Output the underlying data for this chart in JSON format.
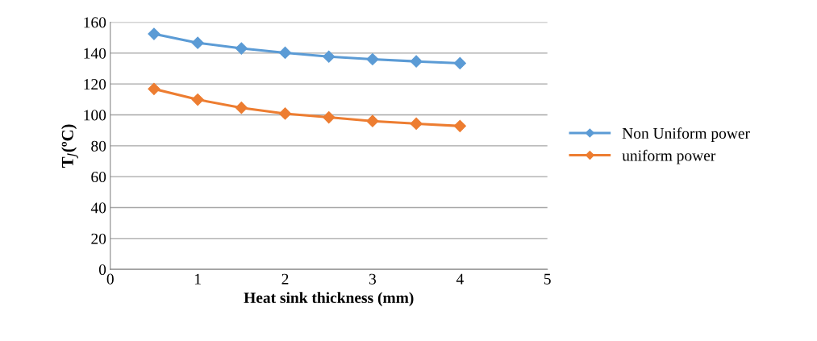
{
  "chart_data": {
    "type": "line",
    "xlabel": "Heat sink thickness (mm)",
    "ylabel": "T$_{J}$(ºC)",
    "x": [
      0.5,
      1,
      1.5,
      2,
      2.5,
      3,
      3.5,
      4
    ],
    "series": [
      {
        "name": "Non Uniform power",
        "color": "#5b9bd5",
        "values": [
          152.4,
          146.6,
          143,
          140.2,
          137.7,
          136,
          134.6,
          133.4
        ]
      },
      {
        "name": "uniform power",
        "color": "#ed7d31",
        "values": [
          116.8,
          109.9,
          104.6,
          100.8,
          98.4,
          96,
          94.3,
          92.8
        ]
      }
    ],
    "xlim": [
      0,
      5
    ],
    "xticks": [
      0,
      1,
      2,
      3,
      4,
      5
    ],
    "ylim": [
      0,
      160
    ],
    "yticks": [
      0,
      20,
      40,
      60,
      80,
      100,
      120,
      140,
      160
    ],
    "grid": "y",
    "legend": "right",
    "marker": "diamond",
    "line_style": "solid"
  }
}
